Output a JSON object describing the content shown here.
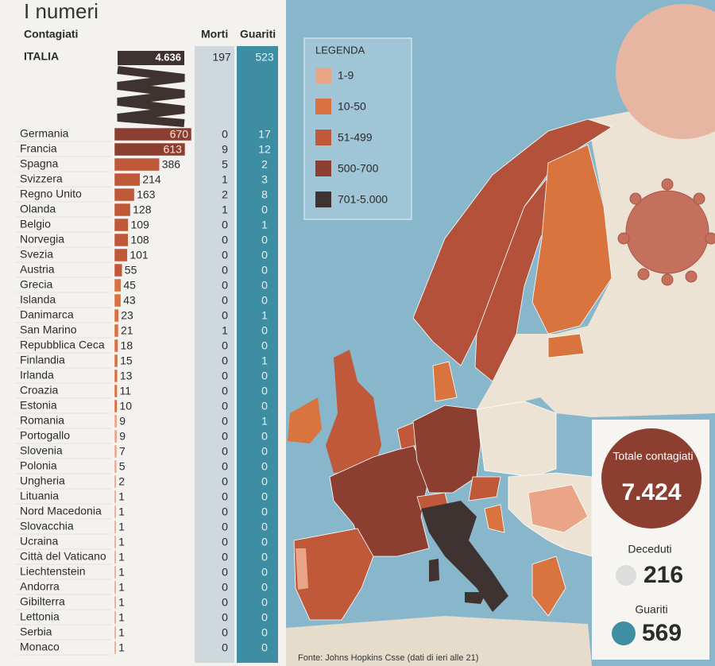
{
  "title": "I numeri",
  "headers": {
    "contagiati": "Contagiati",
    "morti": "Morti",
    "guariti": "Guariti"
  },
  "italia": {
    "name": "ITALIA",
    "contagiati": {
      "value": 4636,
      "label": "4.636"
    },
    "morti": 197,
    "guariti": 523
  },
  "rows": [
    {
      "name": "Germania",
      "contagiati": 670,
      "morti": 0,
      "guariti": 17
    },
    {
      "name": "Francia",
      "contagiati": 613,
      "morti": 9,
      "guariti": 12
    },
    {
      "name": "Spagna",
      "contagiati": 386,
      "morti": 5,
      "guariti": 2
    },
    {
      "name": "Svizzera",
      "contagiati": 214,
      "morti": 1,
      "guariti": 3
    },
    {
      "name": "Regno Unito",
      "contagiati": 163,
      "morti": 2,
      "guariti": 8
    },
    {
      "name": "Olanda",
      "contagiati": 128,
      "morti": 1,
      "guariti": 0
    },
    {
      "name": "Belgio",
      "contagiati": 109,
      "morti": 0,
      "guariti": 1
    },
    {
      "name": "Norvegia",
      "contagiati": 108,
      "morti": 0,
      "guariti": 0
    },
    {
      "name": "Svezia",
      "contagiati": 101,
      "morti": 0,
      "guariti": 0
    },
    {
      "name": "Austria",
      "contagiati": 55,
      "morti": 0,
      "guariti": 0
    },
    {
      "name": "Grecia",
      "contagiati": 45,
      "morti": 0,
      "guariti": 0
    },
    {
      "name": "Islanda",
      "contagiati": 43,
      "morti": 0,
      "guariti": 0
    },
    {
      "name": "Danimarca",
      "contagiati": 23,
      "morti": 0,
      "guariti": 1
    },
    {
      "name": "San Marino",
      "contagiati": 21,
      "morti": 1,
      "guariti": 0
    },
    {
      "name": "Repubblica Ceca",
      "contagiati": 18,
      "morti": 0,
      "guariti": 0
    },
    {
      "name": "Finlandia",
      "contagiati": 15,
      "morti": 0,
      "guariti": 1
    },
    {
      "name": "Irlanda",
      "contagiati": 13,
      "morti": 0,
      "guariti": 0
    },
    {
      "name": "Croazia",
      "contagiati": 11,
      "morti": 0,
      "guariti": 0
    },
    {
      "name": "Estonia",
      "contagiati": 10,
      "morti": 0,
      "guariti": 0
    },
    {
      "name": "Romania",
      "contagiati": 9,
      "morti": 0,
      "guariti": 1
    },
    {
      "name": "Portogallo",
      "contagiati": 9,
      "morti": 0,
      "guariti": 0
    },
    {
      "name": "Slovenia",
      "contagiati": 7,
      "morti": 0,
      "guariti": 0
    },
    {
      "name": "Polonia",
      "contagiati": 5,
      "morti": 0,
      "guariti": 0
    },
    {
      "name": "Ungheria",
      "contagiati": 2,
      "morti": 0,
      "guariti": 0
    },
    {
      "name": "Lituania",
      "contagiati": 1,
      "morti": 0,
      "guariti": 0
    },
    {
      "name": "Nord Macedonia",
      "contagiati": 1,
      "morti": 0,
      "guariti": 0
    },
    {
      "name": "Slovacchia",
      "contagiati": 1,
      "morti": 0,
      "guariti": 0
    },
    {
      "name": "Ucraina",
      "contagiati": 1,
      "morti": 0,
      "guariti": 0
    },
    {
      "name": "Città del Vaticano",
      "contagiati": 1,
      "morti": 0,
      "guariti": 0
    },
    {
      "name": "Liechtenstein",
      "contagiati": 1,
      "morti": 0,
      "guariti": 0
    },
    {
      "name": "Andorra",
      "contagiati": 1,
      "morti": 0,
      "guariti": 0
    },
    {
      "name": "Gibilterra",
      "contagiati": 1,
      "morti": 0,
      "guariti": 0
    },
    {
      "name": "Lettonia",
      "contagiati": 1,
      "morti": 0,
      "guariti": 0
    },
    {
      "name": "Serbia",
      "contagiati": 1,
      "morti": 0,
      "guariti": 0
    },
    {
      "name": "Monaco",
      "contagiati": 1,
      "morti": 0,
      "guariti": 0
    }
  ],
  "legend": {
    "title": "LEGENDA",
    "items": [
      {
        "label": "1-9",
        "range": [
          1,
          9
        ],
        "color": "#eaa487"
      },
      {
        "label": "10-50",
        "range": [
          10,
          50
        ],
        "color": "#d9703f"
      },
      {
        "label": "51-499",
        "range": [
          51,
          499
        ],
        "color": "#c0583a"
      },
      {
        "label": "500-700",
        "range": [
          500,
          700
        ],
        "color": "#8c3f31"
      },
      {
        "label": "701-5.000",
        "range": [
          701,
          5000
        ],
        "color": "#3f3331"
      }
    ]
  },
  "totals": {
    "contagiati_label": "Totale contagiati",
    "contagiati": {
      "value": 7424,
      "label": "7.424"
    },
    "deceduti_label": "Deceduti",
    "deceduti": 216,
    "guariti_label": "Guariti",
    "guariti": 569
  },
  "source": "Fonte: Johns Hopkins Csse (dati di ieri alle 21)"
}
